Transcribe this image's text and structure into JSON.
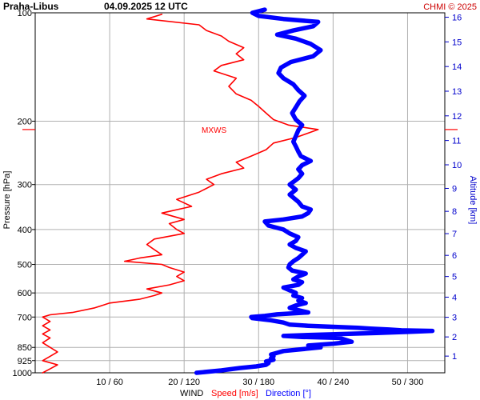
{
  "header": {
    "station": "Praha-Libus",
    "datetime": "04.09.2025 12 UTC",
    "copyright": "CHMI © 2025"
  },
  "chart_data": {
    "type": "line",
    "title": "Praha-Libus 04.09.2025 12 UTC",
    "ylabel": "Pressure [hPa]",
    "y2label": "Altitude [km]",
    "xlabel_prefix": "WIND",
    "xlabel_speed": "Speed [m/s]",
    "xlabel_direction": "Direction [°]",
    "xlim_speed": [
      0,
      55
    ],
    "xlim_direction": [
      0,
      330
    ],
    "ylim_pressure": [
      1000,
      100
    ],
    "y_scale": "log",
    "grid": true,
    "pressure_ticks": [
      "100",
      "200",
      "300",
      "400",
      "500",
      "600",
      "700",
      "850",
      "925",
      "1000"
    ],
    "altitude_ticks": [
      "1",
      "2",
      "3",
      "4",
      "5",
      "6",
      "7",
      "8",
      "9",
      "10",
      "11",
      "12",
      "13",
      "14",
      "15",
      "16"
    ],
    "x_ticks": [
      "10 / 60",
      "20 / 120",
      "30 / 180",
      "40 / 240",
      "50 / 300"
    ],
    "max_wind_label": "MXWS",
    "max_wind_pressure": 211,
    "series": [
      {
        "name": "Speed [m/s]",
        "color": "#ff0000",
        "points": [
          [
            1000,
            1
          ],
          [
            975,
            2
          ],
          [
            950,
            3
          ],
          [
            925,
            1
          ],
          [
            900,
            2
          ],
          [
            875,
            3
          ],
          [
            850,
            2
          ],
          [
            825,
            1
          ],
          [
            800,
            2
          ],
          [
            780,
            1
          ],
          [
            760,
            2
          ],
          [
            740,
            1
          ],
          [
            720,
            2
          ],
          [
            700,
            1
          ],
          [
            690,
            2
          ],
          [
            680,
            5
          ],
          [
            660,
            8
          ],
          [
            640,
            10
          ],
          [
            625,
            14
          ],
          [
            610,
            16
          ],
          [
            600,
            17
          ],
          [
            585,
            15
          ],
          [
            570,
            18
          ],
          [
            555,
            20
          ],
          [
            540,
            19
          ],
          [
            525,
            20
          ],
          [
            510,
            18
          ],
          [
            500,
            17
          ],
          [
            490,
            12
          ],
          [
            480,
            14
          ],
          [
            470,
            17
          ],
          [
            455,
            16
          ],
          [
            440,
            15
          ],
          [
            425,
            16
          ],
          [
            410,
            20
          ],
          [
            400,
            19
          ],
          [
            385,
            18
          ],
          [
            375,
            20
          ],
          [
            360,
            17
          ],
          [
            345,
            21
          ],
          [
            330,
            19
          ],
          [
            315,
            22
          ],
          [
            300,
            24
          ],
          [
            290,
            23
          ],
          [
            280,
            25
          ],
          [
            270,
            28
          ],
          [
            260,
            27
          ],
          [
            250,
            29
          ],
          [
            240,
            31
          ],
          [
            230,
            32
          ],
          [
            222,
            35
          ],
          [
            211,
            38
          ],
          [
            205,
            34
          ],
          [
            198,
            32
          ],
          [
            190,
            31
          ],
          [
            182,
            30
          ],
          [
            175,
            29
          ],
          [
            168,
            27
          ],
          [
            160,
            26
          ],
          [
            152,
            27
          ],
          [
            145,
            24
          ],
          [
            140,
            25
          ],
          [
            135,
            28
          ],
          [
            130,
            27
          ],
          [
            125,
            28
          ],
          [
            120,
            26
          ],
          [
            116,
            25
          ],
          [
            112,
            23
          ],
          [
            108,
            22
          ],
          [
            104,
            15
          ],
          [
            101,
            17
          ]
        ]
      },
      {
        "name": "Direction [°]",
        "color": "#0000ff",
        "points": [
          [
            1000,
            130
          ],
          [
            985,
            150
          ],
          [
            970,
            165
          ],
          [
            960,
            178
          ],
          [
            950,
            186
          ],
          [
            940,
            188
          ],
          [
            930,
            186
          ],
          [
            920,
            192
          ],
          [
            910,
            190
          ],
          [
            900,
            192
          ],
          [
            890,
            190
          ],
          [
            880,
            195
          ],
          [
            870,
            200
          ],
          [
            860,
            215
          ],
          [
            850,
            230
          ],
          [
            840,
            220
          ],
          [
            830,
            240
          ],
          [
            820,
            255
          ],
          [
            810,
            250
          ],
          [
            800,
            245
          ],
          [
            795,
            215
          ],
          [
            790,
            200
          ],
          [
            785,
            220
          ],
          [
            780,
            250
          ],
          [
            775,
            275
          ],
          [
            770,
            300
          ],
          [
            765,
            320
          ],
          [
            762,
            295
          ],
          [
            758,
            285
          ],
          [
            754,
            270
          ],
          [
            750,
            260
          ],
          [
            745,
            240
          ],
          [
            740,
            220
          ],
          [
            735,
            205
          ],
          [
            725,
            200
          ],
          [
            715,
            190
          ],
          [
            705,
            175
          ],
          [
            700,
            174
          ],
          [
            695,
            185
          ],
          [
            688,
            195
          ],
          [
            680,
            220
          ],
          [
            670,
            212
          ],
          [
            660,
            205
          ],
          [
            650,
            210
          ],
          [
            640,
            218
          ],
          [
            630,
            212
          ],
          [
            620,
            215
          ],
          [
            610,
            208
          ],
          [
            600,
            210
          ],
          [
            590,
            205
          ],
          [
            580,
            200
          ],
          [
            570,
            212
          ],
          [
            560,
            215
          ],
          [
            550,
            208
          ],
          [
            540,
            212
          ],
          [
            530,
            218
          ],
          [
            520,
            207
          ],
          [
            510,
            204
          ],
          [
            500,
            205
          ],
          [
            490,
            208
          ],
          [
            480,
            212
          ],
          [
            470,
            215
          ],
          [
            460,
            218
          ],
          [
            450,
            210
          ],
          [
            440,
            205
          ],
          [
            430,
            210
          ],
          [
            420,
            212
          ],
          [
            410,
            205
          ],
          [
            400,
            200
          ],
          [
            390,
            188
          ],
          [
            380,
            185
          ],
          [
            375,
            200
          ],
          [
            368,
            215
          ],
          [
            360,
            220
          ],
          [
            352,
            222
          ],
          [
            345,
            215
          ],
          [
            335,
            212
          ],
          [
            320,
            205
          ],
          [
            310,
            210
          ],
          [
            300,
            205
          ],
          [
            295,
            208
          ],
          [
            288,
            212
          ],
          [
            280,
            215
          ],
          [
            272,
            212
          ],
          [
            265,
            215
          ],
          [
            258,
            222
          ],
          [
            250,
            214
          ],
          [
            243,
            212
          ],
          [
            235,
            210
          ],
          [
            228,
            208
          ],
          [
            220,
            210
          ],
          [
            212,
            212
          ],
          [
            205,
            215
          ],
          [
            198,
            210
          ],
          [
            190,
            207
          ],
          [
            183,
            210
          ],
          [
            176,
            213
          ],
          [
            170,
            217
          ],
          [
            164,
            212
          ],
          [
            158,
            208
          ],
          [
            152,
            200
          ],
          [
            147,
            196
          ],
          [
            142,
            198
          ],
          [
            137,
            206
          ],
          [
            132,
            224
          ],
          [
            127,
            230
          ],
          [
            122,
            222
          ],
          [
            118,
            210
          ],
          [
            115,
            195
          ],
          [
            112,
            208
          ],
          [
            109,
            224
          ],
          [
            106,
            228
          ],
          [
            104,
            200
          ],
          [
            102,
            180
          ],
          [
            100,
            175
          ],
          [
            98,
            185
          ]
        ]
      }
    ]
  }
}
